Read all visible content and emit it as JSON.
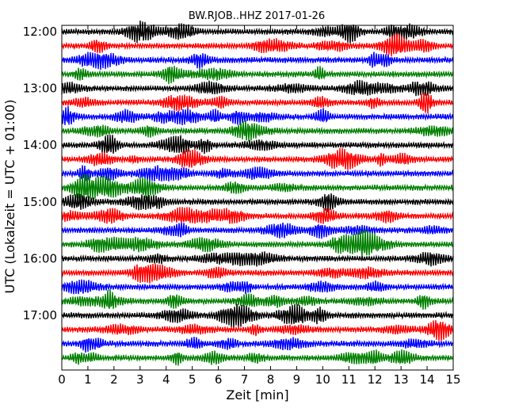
{
  "chart_data": {
    "type": "line",
    "title": "BW.RJOB..HHZ 2017-01-26",
    "xlabel": "Zeit  [min]",
    "ylabel": "UTC (Lokalzeit = UTC + 01:00)",
    "xlim": [
      0,
      15
    ],
    "x_ticks": [
      "0",
      "1",
      "2",
      "3",
      "4",
      "5",
      "6",
      "7",
      "8",
      "9",
      "10",
      "11",
      "12",
      "13",
      "14",
      "15"
    ],
    "y_ticks": [
      "12:00",
      "13:00",
      "14:00",
      "15:00",
      "16:00",
      "17:00"
    ],
    "row_start_time": "12:00",
    "row_interval_min": 15,
    "row_count": 24,
    "colors": [
      "#000000",
      "#ff0000",
      "#0000ff",
      "#008000"
    ],
    "series": [
      {
        "label_time": "12:00",
        "color": "#000000"
      },
      {
        "label_time": "12:15",
        "color": "#ff0000"
      },
      {
        "label_time": "12:30",
        "color": "#0000ff"
      },
      {
        "label_time": "12:45",
        "color": "#008000"
      },
      {
        "label_time": "13:00",
        "color": "#000000"
      },
      {
        "label_time": "13:15",
        "color": "#ff0000"
      },
      {
        "label_time": "13:30",
        "color": "#0000ff"
      },
      {
        "label_time": "13:45",
        "color": "#008000"
      },
      {
        "label_time": "14:00",
        "color": "#000000"
      },
      {
        "label_time": "14:15",
        "color": "#ff0000"
      },
      {
        "label_time": "14:30",
        "color": "#0000ff"
      },
      {
        "label_time": "14:45",
        "color": "#008000"
      },
      {
        "label_time": "15:00",
        "color": "#000000"
      },
      {
        "label_time": "15:15",
        "color": "#ff0000"
      },
      {
        "label_time": "15:30",
        "color": "#0000ff"
      },
      {
        "label_time": "15:45",
        "color": "#008000"
      },
      {
        "label_time": "16:00",
        "color": "#000000"
      },
      {
        "label_time": "16:15",
        "color": "#ff0000"
      },
      {
        "label_time": "16:30",
        "color": "#0000ff"
      },
      {
        "label_time": "16:45",
        "color": "#008000"
      },
      {
        "label_time": "17:00",
        "color": "#000000"
      },
      {
        "label_time": "17:15",
        "color": "#ff0000"
      },
      {
        "label_time": "17:30",
        "color": "#0000ff"
      },
      {
        "label_time": "17:45",
        "color": "#008000"
      }
    ],
    "grid": false,
    "legend": "none"
  }
}
